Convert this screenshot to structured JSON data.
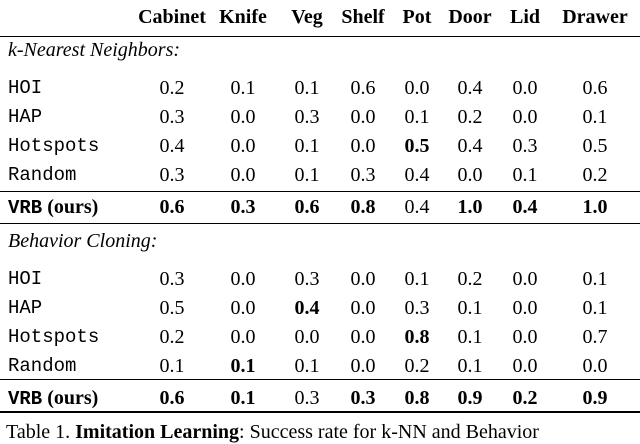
{
  "table": {
    "columns": [
      "Cabinet",
      "Knife",
      "Veg",
      "Shelf",
      "Pot",
      "Door",
      "Lid",
      "Drawer"
    ],
    "sections": [
      {
        "title": "k-Nearest Neighbors:",
        "rows": [
          {
            "method": "HOI",
            "values": [
              "0.2",
              "0.1",
              "0.1",
              "0.6",
              "0.0",
              "0.4",
              "0.0",
              "0.6"
            ],
            "bold": []
          },
          {
            "method": "HAP",
            "values": [
              "0.3",
              "0.0",
              "0.3",
              "0.0",
              "0.1",
              "0.2",
              "0.0",
              "0.1"
            ],
            "bold": []
          },
          {
            "method": "Hotspots",
            "values": [
              "0.4",
              "0.0",
              "0.1",
              "0.0",
              "0.5",
              "0.4",
              "0.3",
              "0.5"
            ],
            "bold": [
              4
            ]
          },
          {
            "method": "Random",
            "values": [
              "0.3",
              "0.0",
              "0.1",
              "0.3",
              "0.4",
              "0.0",
              "0.1",
              "0.2"
            ],
            "bold": []
          }
        ],
        "ours": {
          "method": "VRB",
          "note": "(ours)",
          "values": [
            "0.6",
            "0.3",
            "0.6",
            "0.8",
            "0.4",
            "1.0",
            "0.4",
            "1.0"
          ],
          "bold": [
            0,
            1,
            2,
            3,
            5,
            6,
            7
          ]
        }
      },
      {
        "title": "Behavior Cloning:",
        "rows": [
          {
            "method": "HOI",
            "values": [
              "0.3",
              "0.0",
              "0.3",
              "0.0",
              "0.1",
              "0.2",
              "0.0",
              "0.1"
            ],
            "bold": []
          },
          {
            "method": "HAP",
            "values": [
              "0.5",
              "0.0",
              "0.4",
              "0.0",
              "0.3",
              "0.1",
              "0.0",
              "0.1"
            ],
            "bold": [
              2
            ]
          },
          {
            "method": "Hotspots",
            "values": [
              "0.2",
              "0.0",
              "0.0",
              "0.0",
              "0.8",
              "0.1",
              "0.0",
              "0.7"
            ],
            "bold": [
              4
            ]
          },
          {
            "method": "Random",
            "values": [
              "0.1",
              "0.1",
              "0.1",
              "0.0",
              "0.2",
              "0.1",
              "0.0",
              "0.0"
            ],
            "bold": [
              1
            ]
          }
        ],
        "ours": {
          "method": "VRB",
          "note": "(ours)",
          "values": [
            "0.6",
            "0.1",
            "0.3",
            "0.3",
            "0.8",
            "0.9",
            "0.2",
            "0.9"
          ],
          "bold": [
            0,
            1,
            3,
            4,
            5,
            6,
            7
          ]
        }
      }
    ]
  },
  "caption": {
    "label": "Table 1.",
    "title": "Imitation Learning",
    "text": ": Success rate for k-NN and Behavior"
  }
}
